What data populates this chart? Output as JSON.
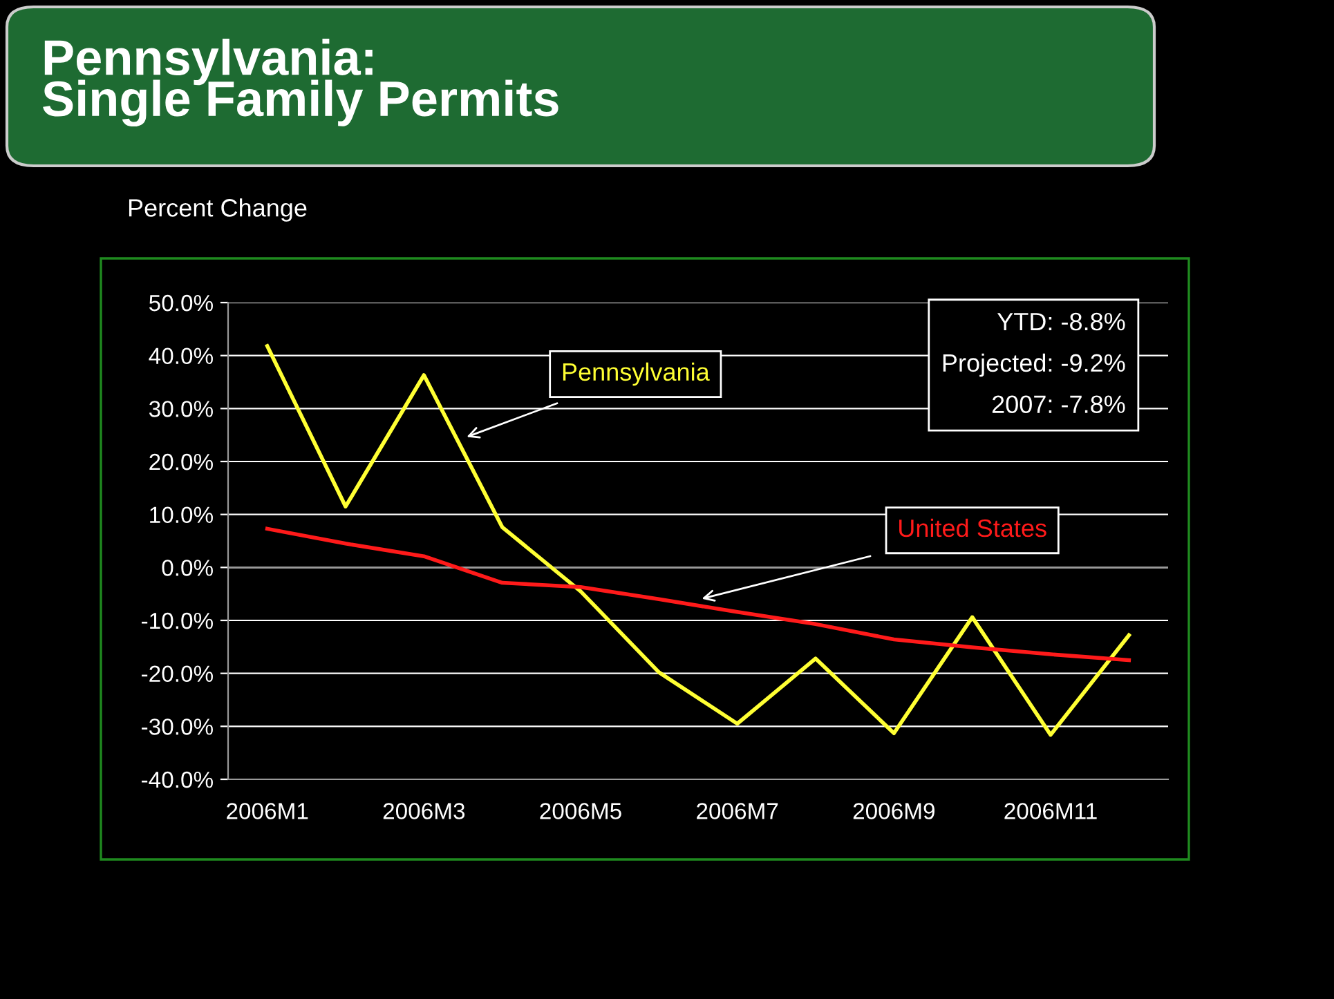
{
  "chart_data": {
    "type": "line",
    "title": "Pennsylvania:\nSingle Family Permits",
    "ylabel": "Percent Change",
    "categories": [
      "2006M1",
      null,
      "2006M3",
      null,
      "2006M5",
      null,
      "2006M7",
      null,
      "2006M9",
      null,
      "2006M11",
      null
    ],
    "series": [
      {
        "name": "Pennsylvania",
        "color": "#ffff33",
        "values": [
          41.8,
          11.5,
          36.3,
          7.6,
          -4.5,
          -19.8,
          -29.5,
          -17.2,
          -31.3,
          -9.4,
          -31.6,
          -12.8
        ]
      },
      {
        "name": "United States",
        "color": "#ff1a1a",
        "values": [
          7.3,
          4.5,
          2.1,
          -2.9,
          -3.7,
          -6.0,
          -8.4,
          -10.7,
          -13.6,
          -15.1,
          -16.4,
          -17.5
        ]
      }
    ],
    "ylim": [
      -40,
      50
    ],
    "yticks": [
      {
        "value": -40,
        "label": "-40.0%"
      },
      {
        "value": -30,
        "label": "-30.0%"
      },
      {
        "value": -20,
        "label": "-20.0%"
      },
      {
        "value": -10,
        "label": "-10.0%"
      },
      {
        "value": 0,
        "label": "0.0%"
      },
      {
        "value": 10,
        "label": "10.0%"
      },
      {
        "value": 20,
        "label": "20.0%"
      },
      {
        "value": 30,
        "label": "30.0%"
      },
      {
        "value": 40,
        "label": "40.0%"
      },
      {
        "value": 50,
        "label": "50.0%"
      }
    ],
    "annotations": [
      "YTD: -8.8%",
      "Projected: -9.2%",
      "2007: -7.8%"
    ],
    "grid": "y",
    "legend": false,
    "marker": "none",
    "line_style": "solid"
  }
}
